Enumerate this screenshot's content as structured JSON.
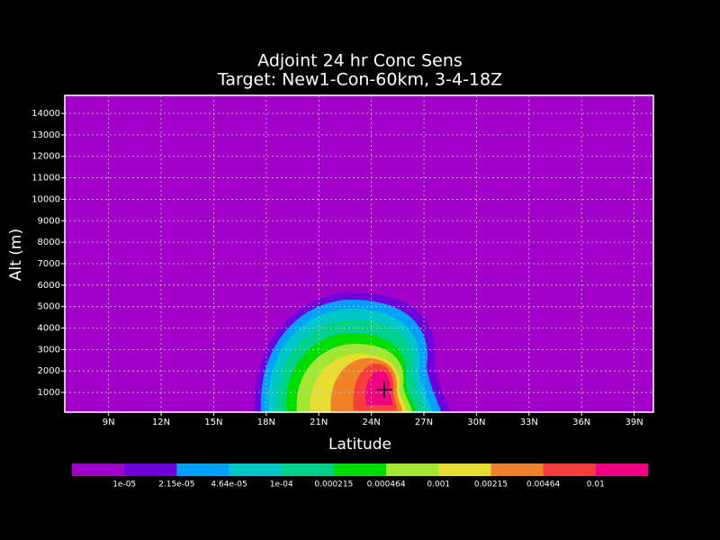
{
  "chart_data": {
    "type": "contour",
    "title": "Adjoint 24 hr Conc Sens",
    "subtitle": "Target: New1-Con-60km, 3-4-18Z",
    "xlabel": "Latitude",
    "ylabel": "Alt (m)",
    "xlim": [
      6.5,
      40.1
    ],
    "ylim": [
      80,
      14840
    ],
    "xticks": [
      {
        "value": 9,
        "label": "9N"
      },
      {
        "value": 12,
        "label": "12N"
      },
      {
        "value": 15,
        "label": "15N"
      },
      {
        "value": 18,
        "label": "18N"
      },
      {
        "value": 21,
        "label": "21N"
      },
      {
        "value": 24,
        "label": "24N"
      },
      {
        "value": 27,
        "label": "27N"
      },
      {
        "value": 30,
        "label": "30N"
      },
      {
        "value": 33,
        "label": "33N"
      },
      {
        "value": 36,
        "label": "36N"
      },
      {
        "value": 39,
        "label": "39N"
      }
    ],
    "yticks": [
      1000,
      2000,
      3000,
      4000,
      5000,
      6000,
      7000,
      8000,
      9000,
      10000,
      11000,
      12000,
      13000,
      14000
    ],
    "grid": true,
    "levels": [
      {
        "value": 1e-05,
        "label": "1e-05"
      },
      {
        "value": 2.15e-05,
        "label": "2.15e-05"
      },
      {
        "value": 4.64e-05,
        "label": "4.64e-05"
      },
      {
        "value": 0.0001,
        "label": "1e-04"
      },
      0.000215,
      0.000464,
      0.001,
      0.00215,
      0.00464,
      0.01
    ],
    "colors": [
      "#a000c8",
      "#6e00dc",
      "#00a0ff",
      "#00c8c8",
      "#00d28c",
      "#00dc00",
      "#a0e632",
      "#e6dc32",
      "#f08228",
      "#fa3c3c",
      "#f00082"
    ]
  }
}
